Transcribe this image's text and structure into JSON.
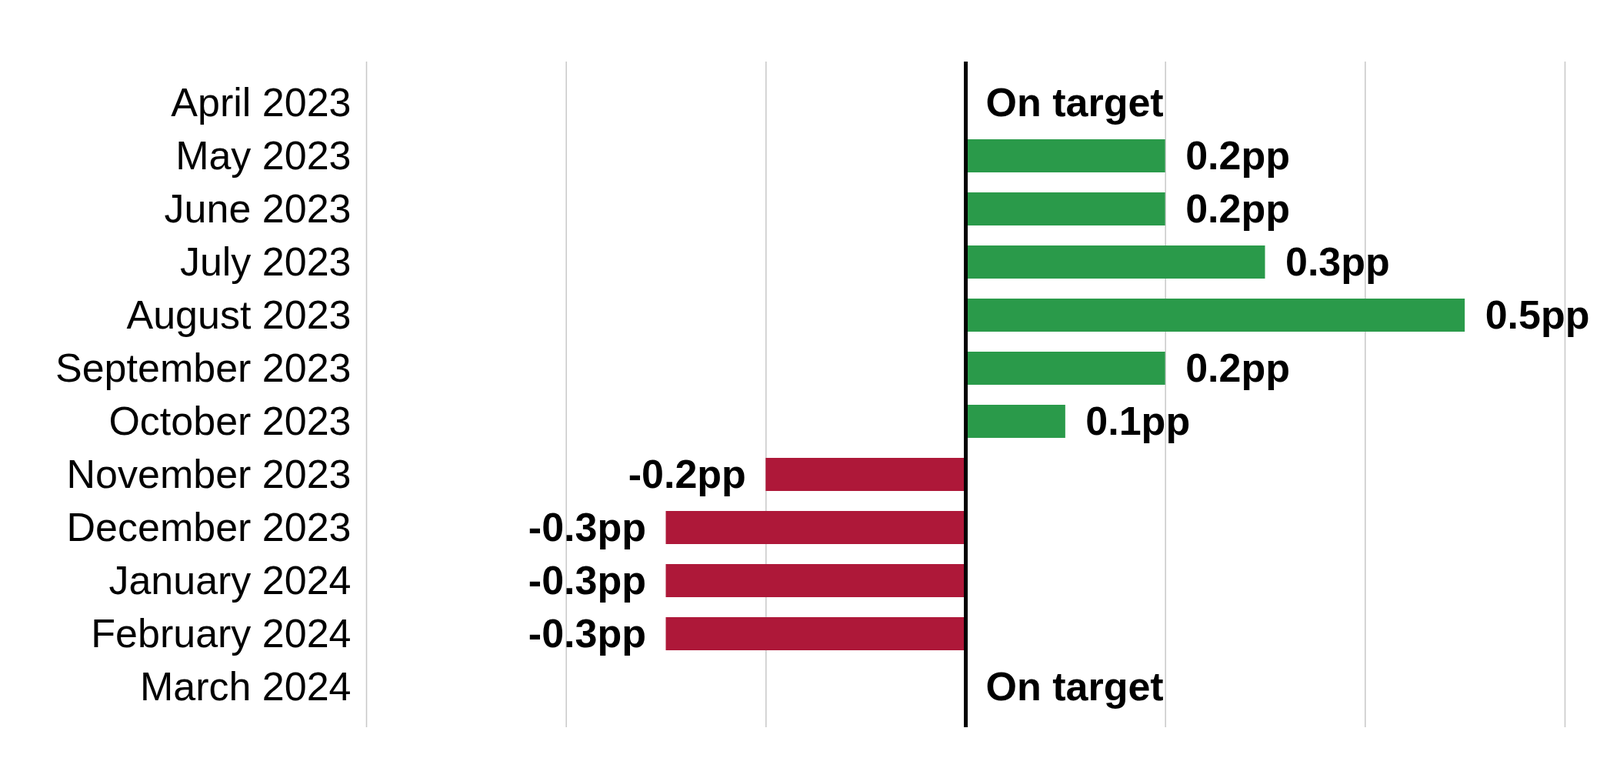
{
  "chart_data": {
    "type": "bar",
    "orientation": "horizontal",
    "categories": [
      "April 2023",
      "May 2023",
      "June 2023",
      "July 2023",
      "August 2023",
      "September 2023",
      "October 2023",
      "November 2023",
      "December 2023",
      "January 2024",
      "February 2024",
      "March 2024"
    ],
    "values": [
      0,
      0.2,
      0.2,
      0.3,
      0.5,
      0.2,
      0.1,
      -0.2,
      -0.3,
      -0.3,
      -0.3,
      0
    ],
    "value_labels": [
      "On target",
      "0.2pp",
      "0.2pp",
      "0.3pp",
      "0.5pp",
      "0.2pp",
      "0.1pp",
      "-0.2pp",
      "-0.3pp",
      "-0.3pp",
      "-0.3pp",
      "On target"
    ],
    "colors": [
      "#2a9a4a",
      "#2a9a4a",
      "#2a9a4a",
      "#2a9a4a",
      "#2a9a4a",
      "#2a9a4a",
      "#2a9a4a",
      "#ae1839",
      "#ae1839",
      "#ae1839",
      "#ae1839",
      "#2a9a4a"
    ],
    "xlim": [
      -0.6,
      0.6
    ],
    "xticks": [
      -0.6,
      -0.4,
      -0.2,
      0,
      0.2,
      0.4,
      0.6
    ],
    "grid": true,
    "data_labels": true,
    "tick_labels": "y"
  }
}
